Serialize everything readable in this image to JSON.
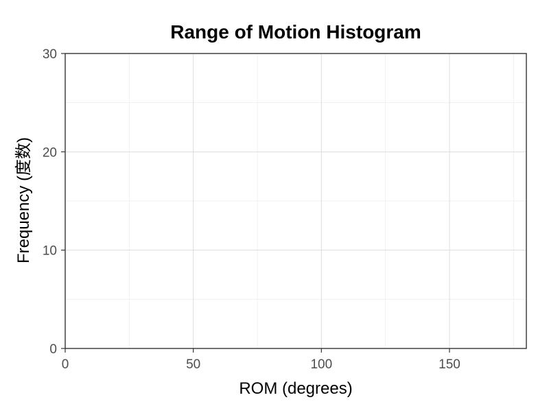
{
  "chart_data": {
    "type": "bar",
    "title": "Range of Motion Histogram",
    "xlabel": "ROM (degrees)",
    "ylabel": "Frequency (度数)",
    "xlim": [
      0,
      180
    ],
    "ylim": [
      0,
      30
    ],
    "x_ticks": [
      0,
      50,
      100,
      150
    ],
    "y_ticks": [
      0,
      10,
      20,
      30
    ],
    "x_minor_ticks": [
      25,
      75,
      125,
      175
    ],
    "y_minor_ticks": [
      5,
      15,
      25
    ],
    "grid": true,
    "series": [
      {
        "values": []
      }
    ]
  },
  "colors": {
    "panel_border": "#333333",
    "major_grid": "#dcdcdc",
    "minor_grid": "#ededed",
    "tick_label": "#4d4d4d",
    "text": "#000000"
  }
}
